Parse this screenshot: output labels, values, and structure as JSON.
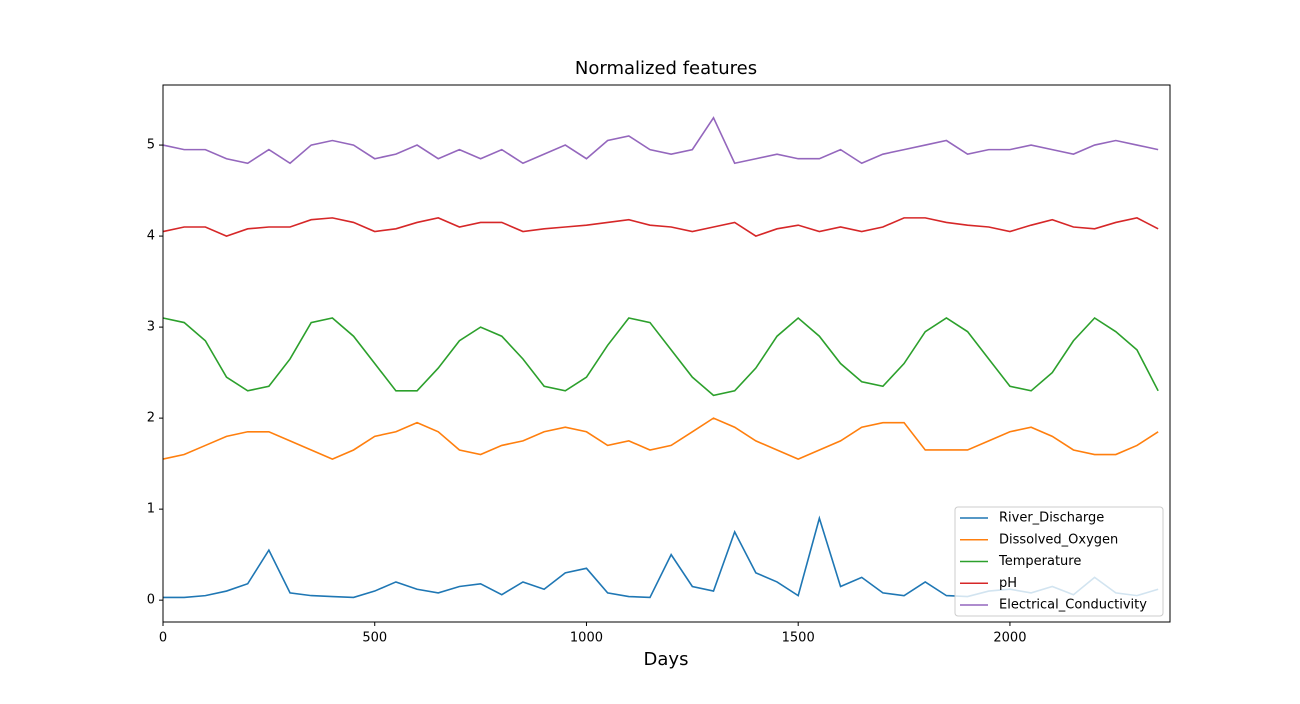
{
  "chart_data": {
    "type": "line",
    "title": "Normalized features",
    "x_label": "Days",
    "x": [
      0,
      50,
      100,
      150,
      200,
      250,
      300,
      350,
      400,
      450,
      500,
      550,
      600,
      650,
      700,
      750,
      800,
      850,
      900,
      950,
      1000,
      1050,
      1100,
      1150,
      1200,
      1250,
      1300,
      1350,
      1400,
      1450,
      1500,
      1550,
      1600,
      1650,
      1700,
      1750,
      1800,
      1850,
      1900,
      1950,
      2000,
      2050,
      2100,
      2150,
      2200,
      2250,
      2300,
      2350
    ],
    "series": [
      {
        "name": "River_Discharge",
        "color": "#1f77b4",
        "values": [
          0.03,
          0.03,
          0.05,
          0.1,
          0.18,
          0.55,
          0.08,
          0.05,
          0.04,
          0.03,
          0.1,
          0.2,
          0.12,
          0.08,
          0.15,
          0.18,
          0.06,
          0.2,
          0.12,
          0.3,
          0.35,
          0.08,
          0.04,
          0.03,
          0.5,
          0.15,
          0.1,
          0.75,
          0.3,
          0.2,
          0.05,
          0.9,
          0.15,
          0.25,
          0.08,
          0.05,
          0.2,
          0.05,
          0.04,
          0.1,
          0.12,
          0.08,
          0.15,
          0.06,
          0.25,
          0.08,
          0.05,
          0.12
        ]
      },
      {
        "name": "Dissolved_Oxygen",
        "color": "#ff7f0e",
        "values": [
          1.55,
          1.6,
          1.7,
          1.8,
          1.85,
          1.85,
          1.75,
          1.65,
          1.55,
          1.65,
          1.8,
          1.85,
          1.95,
          1.85,
          1.65,
          1.6,
          1.7,
          1.75,
          1.85,
          1.9,
          1.85,
          1.7,
          1.75,
          1.65,
          1.7,
          1.85,
          2.0,
          1.9,
          1.75,
          1.65,
          1.55,
          1.65,
          1.75,
          1.9,
          1.95,
          1.95,
          1.65,
          1.65,
          1.65,
          1.75,
          1.85,
          1.9,
          1.8,
          1.65,
          1.6,
          1.6,
          1.7,
          1.85
        ]
      },
      {
        "name": "Temperature",
        "color": "#2ca02c",
        "values": [
          3.1,
          3.05,
          2.85,
          2.45,
          2.3,
          2.35,
          2.65,
          3.05,
          3.1,
          2.9,
          2.6,
          2.3,
          2.3,
          2.55,
          2.85,
          3.0,
          2.9,
          2.65,
          2.35,
          2.3,
          2.45,
          2.8,
          3.1,
          3.05,
          2.75,
          2.45,
          2.25,
          2.3,
          2.55,
          2.9,
          3.1,
          2.9,
          2.6,
          2.4,
          2.35,
          2.6,
          2.95,
          3.1,
          2.95,
          2.65,
          2.35,
          2.3,
          2.5,
          2.85,
          3.1,
          2.95,
          2.75,
          2.3
        ]
      },
      {
        "name": "pH",
        "color": "#d62728",
        "values": [
          4.05,
          4.1,
          4.1,
          4.0,
          4.08,
          4.1,
          4.1,
          4.18,
          4.2,
          4.15,
          4.05,
          4.08,
          4.15,
          4.2,
          4.1,
          4.15,
          4.15,
          4.05,
          4.08,
          4.1,
          4.12,
          4.15,
          4.18,
          4.12,
          4.1,
          4.05,
          4.1,
          4.15,
          4.0,
          4.08,
          4.12,
          4.05,
          4.1,
          4.05,
          4.1,
          4.2,
          4.2,
          4.15,
          4.12,
          4.1,
          4.05,
          4.12,
          4.18,
          4.1,
          4.08,
          4.15,
          4.2,
          4.08
        ]
      },
      {
        "name": "Electrical_Conductivity",
        "color": "#9467bd",
        "values": [
          5.0,
          4.95,
          4.95,
          4.85,
          4.8,
          4.95,
          4.8,
          5.0,
          5.05,
          5.0,
          4.85,
          4.9,
          5.0,
          4.85,
          4.95,
          4.85,
          4.95,
          4.8,
          4.9,
          5.0,
          4.85,
          5.05,
          5.1,
          4.95,
          4.9,
          4.95,
          5.3,
          4.8,
          4.85,
          4.9,
          4.85,
          4.85,
          4.95,
          4.8,
          4.9,
          4.95,
          5.0,
          5.05,
          4.9,
          4.95,
          4.95,
          5.0,
          4.95,
          4.9,
          5.0,
          5.05,
          5.0,
          4.95
        ]
      }
    ],
    "xlim": [
      0,
      2378
    ],
    "ylim": [
      -0.24,
      5.66
    ],
    "xticks": [
      0,
      500,
      1000,
      1500,
      2000
    ],
    "yticks": [
      0,
      1,
      2,
      3,
      4,
      5
    ],
    "legend": "lower right"
  }
}
